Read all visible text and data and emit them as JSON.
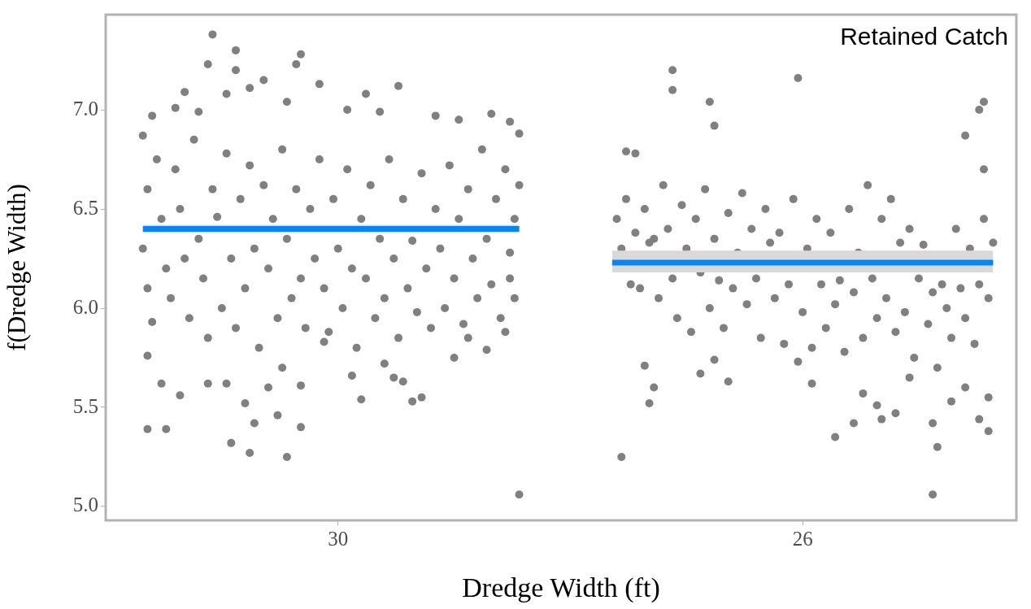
{
  "chart_data": {
    "type": "scatter",
    "xlabel": "Dredge Width (ft)",
    "ylabel": "f(Dredge Width)",
    "annotations": [
      "Retained Catch"
    ],
    "xlim": [
      32.0,
      24.16
    ],
    "ylim": [
      4.93,
      7.48
    ],
    "xticks": [
      30,
      26
    ],
    "yticks": [
      {
        "value": 5,
        "label": "5.0"
      },
      {
        "value": 5.5,
        "label": "5.5"
      },
      {
        "value": 6,
        "label": "6.0"
      },
      {
        "value": 6.5,
        "label": "6.5"
      },
      {
        "value": 7,
        "label": "7.0"
      }
    ],
    "grid": false,
    "legend": false,
    "marker": "circle",
    "series": [
      {
        "color": "#808080",
        "x": [
          31.08,
          30.88,
          31.12,
          30.88,
          30.32,
          30.36,
          30.64,
          30.16,
          29.48,
          29.76,
          31.32,
          31.6,
          31.4,
          30.96,
          30.76,
          29.16,
          28.68,
          28.52,
          28.96,
          30.44,
          29.92,
          29.64,
          31.2,
          31.64,
          31.48,
          30.44,
          30.32,
          30.76,
          30.92,
          30.52,
          30.72,
          30.32,
          28.44,
          31.64,
          31.52,
          31.36,
          31.12,
          30.96,
          30.8,
          30.6,
          30.48,
          29.88,
          29.8,
          29.52,
          29.36,
          29.44,
          29,
          29.28,
          28.88,
          28.72,
          28.56,
          29.6,
          30.12,
          31.68,
          31.64,
          31.68,
          31.64,
          31.6,
          31.56,
          31.52,
          31.48,
          31.44,
          31.4,
          31.36,
          31.32,
          31.28,
          31.24,
          31.2,
          31.16,
          31.12,
          31.08,
          31.04,
          31,
          30.96,
          30.92,
          30.88,
          30.84,
          30.8,
          30.76,
          30.72,
          30.68,
          30.64,
          30.6,
          30.56,
          30.52,
          30.48,
          30.44,
          30.4,
          30.36,
          30.32,
          30.28,
          30.24,
          30.2,
          30.16,
          30.12,
          30.08,
          30.04,
          30,
          29.96,
          29.92,
          29.88,
          29.84,
          29.8,
          29.76,
          29.72,
          29.68,
          29.64,
          29.6,
          29.56,
          29.52,
          29.48,
          29.44,
          29.4,
          29.36,
          29.32,
          29.28,
          29.24,
          29.2,
          29.16,
          29.12,
          29.08,
          29.04,
          29,
          28.96,
          28.92,
          28.88,
          28.84,
          28.8,
          28.76,
          28.72,
          28.68,
          28.64,
          28.6,
          28.56,
          28.52,
          28.48,
          28.44,
          28.44,
          28.48,
          28.52
        ],
        "values": [
          7.38,
          7.3,
          7.23,
          7.2,
          7.28,
          7.23,
          7.15,
          7.13,
          7.12,
          7.08,
          7.09,
          6.97,
          7.01,
          7.08,
          7.11,
          6.97,
          6.98,
          6.94,
          6.95,
          7.04,
          7,
          6.99,
          6.99,
          5.39,
          5.39,
          5.25,
          5.4,
          5.27,
          5.32,
          5.46,
          5.42,
          5.61,
          5.06,
          5.76,
          5.62,
          5.56,
          5.62,
          5.62,
          5.52,
          5.6,
          5.7,
          5.66,
          5.54,
          5.65,
          5.53,
          5.63,
          5.75,
          5.55,
          5.85,
          5.79,
          5.88,
          5.72,
          5.83,
          6.87,
          6.6,
          6.3,
          6.1,
          5.93,
          6.75,
          6.45,
          6.2,
          6.05,
          6.7,
          6.5,
          6.25,
          5.95,
          6.85,
          6.35,
          6.15,
          5.85,
          6.6,
          6.46,
          6,
          6.78,
          6.25,
          5.9,
          6.55,
          6.1,
          6.72,
          6.3,
          5.8,
          6.62,
          6.2,
          6.45,
          5.95,
          6.8,
          6.35,
          6.05,
          6.6,
          6.15,
          5.9,
          6.5,
          6.25,
          6.75,
          6.1,
          5.88,
          6.55,
          6.3,
          6,
          6.7,
          6.2,
          5.8,
          6.45,
          6.15,
          6.62,
          5.95,
          6.35,
          6.05,
          6.75,
          6.25,
          5.85,
          6.55,
          6.1,
          6.34,
          5.98,
          6.68,
          6.2,
          5.9,
          6.5,
          6.3,
          6,
          6.72,
          6.15,
          6.45,
          5.92,
          6.6,
          6.25,
          6.05,
          6.8,
          6.35,
          6.12,
          6.55,
          5.95,
          6.7,
          6.28,
          6.05,
          6.62,
          6.88,
          6.45,
          6.15
        ]
      },
      {
        "color": "#808080",
        "x": [
          27.12,
          27.12,
          26.8,
          26.04,
          24.44,
          24.48,
          24.6,
          24.44,
          26.76,
          27.52,
          27.44,
          27.56,
          24.88,
          24.84,
          24.88,
          24.4,
          24.48,
          24.4,
          25.72,
          25.56,
          25.32,
          25.2,
          25.36,
          27.32,
          27.28,
          27.36,
          26.88,
          26.64,
          26.76,
          25.92,
          26.04,
          25.48,
          25.08,
          24.72,
          24.6,
          27.6,
          27.56,
          27.52,
          27.48,
          27.44,
          27.4,
          27.36,
          27.32,
          27.28,
          27.24,
          27.2,
          27.16,
          27.12,
          27.08,
          27.04,
          27,
          26.96,
          26.92,
          26.88,
          26.84,
          26.8,
          26.76,
          26.72,
          26.68,
          26.64,
          26.6,
          26.56,
          26.52,
          26.48,
          26.44,
          26.4,
          26.36,
          26.32,
          26.28,
          26.24,
          26.2,
          26.16,
          26.12,
          26.08,
          26,
          25.96,
          25.92,
          25.88,
          25.84,
          25.8,
          25.76,
          25.72,
          25.68,
          25.64,
          25.6,
          25.56,
          25.52,
          25.48,
          25.44,
          25.4,
          25.36,
          25.32,
          25.28,
          25.24,
          25.2,
          25.16,
          25.12,
          25.08,
          25.04,
          25,
          24.96,
          24.92,
          24.88,
          24.84,
          24.8,
          24.76,
          24.72,
          24.68,
          24.64,
          24.6,
          24.56,
          24.52,
          24.48,
          24.44,
          24.4,
          24.36
        ],
        "values": [
          7.2,
          7.1,
          7.04,
          7.16,
          7.04,
          7,
          6.87,
          6.7,
          6.92,
          6.79,
          6.78,
          5.25,
          5.06,
          5.3,
          5.42,
          5.38,
          5.44,
          5.55,
          5.35,
          5.42,
          5.44,
          5.47,
          5.51,
          5.52,
          5.6,
          5.71,
          5.67,
          5.63,
          5.74,
          5.62,
          5.73,
          5.57,
          5.65,
          5.53,
          5.6,
          6.45,
          6.3,
          6.55,
          6.12,
          6.38,
          6.1,
          6.5,
          6.33,
          6.35,
          6.05,
          6.62,
          6.4,
          6.15,
          5.95,
          6.52,
          6.3,
          5.88,
          6.45,
          6.18,
          6.6,
          6,
          6.35,
          6.14,
          5.9,
          6.48,
          6.1,
          6.28,
          6.58,
          6.02,
          6.4,
          6.15,
          5.85,
          6.5,
          6.33,
          6.05,
          6.38,
          5.82,
          6.12,
          6.55,
          5.98,
          6.3,
          5.8,
          6.45,
          6.12,
          5.9,
          6.38,
          6.02,
          6.14,
          5.78,
          6.5,
          6.08,
          6.28,
          5.85,
          6.62,
          6.15,
          5.95,
          6.45,
          6.05,
          6.55,
          5.88,
          6.33,
          5.98,
          6.4,
          5.75,
          6.15,
          6.32,
          5.92,
          6.08,
          5.7,
          6.12,
          6,
          5.85,
          6.4,
          6.1,
          5.95,
          6.3,
          5.82,
          6.12,
          6.45,
          6.05,
          6.33
        ]
      },
      {
        "type": "line",
        "color": "#0a84f0",
        "marker": "none",
        "x": [
          31.68,
          28.44
        ],
        "values": [
          6.4,
          6.4
        ],
        "lower": [
          6.38,
          6.38
        ],
        "upper": [
          6.42,
          6.42
        ]
      },
      {
        "type": "line",
        "color": "#0a84f0",
        "marker": "none",
        "x": [
          27.64,
          24.36
        ],
        "values": [
          6.23,
          6.23
        ],
        "lower": [
          6.18,
          6.18
        ],
        "upper": [
          6.29,
          6.29
        ]
      }
    ]
  }
}
